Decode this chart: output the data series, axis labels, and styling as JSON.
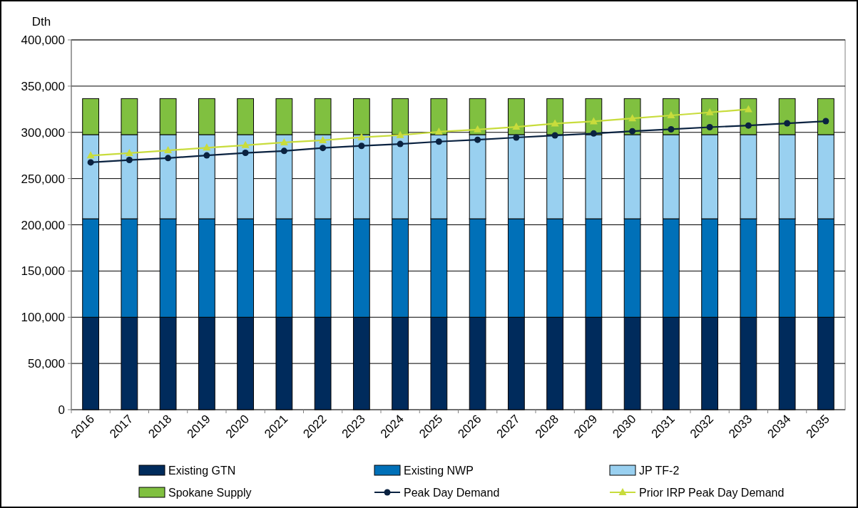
{
  "chart_data": {
    "type": "bar",
    "stacked": true,
    "ylabel": "Dth",
    "categories": [
      "2016",
      "2017",
      "2018",
      "2019",
      "2020",
      "2021",
      "2022",
      "2023",
      "2024",
      "2025",
      "2026",
      "2027",
      "2028",
      "2029",
      "2030",
      "2031",
      "2032",
      "2033",
      "2034",
      "2035"
    ],
    "series": [
      {
        "name": "Existing GTN",
        "color": "#002b5c",
        "values": [
          100000,
          100000,
          100000,
          100000,
          100000,
          100000,
          100000,
          100000,
          100000,
          100000,
          100000,
          100000,
          100000,
          100000,
          100000,
          100000,
          100000,
          100000,
          100000,
          100000
        ]
      },
      {
        "name": "Existing NWP",
        "color": "#0070b8",
        "values": [
          106500,
          106500,
          106500,
          106500,
          106500,
          106500,
          106500,
          106500,
          106500,
          106500,
          106500,
          106500,
          106500,
          106500,
          106500,
          106500,
          106500,
          106500,
          106500,
          106500
        ]
      },
      {
        "name": "JP TF-2",
        "color": "#99d0f0",
        "values": [
          91000,
          91000,
          91000,
          91000,
          91000,
          91000,
          91000,
          91000,
          91000,
          91000,
          91000,
          91000,
          91000,
          91000,
          91000,
          91000,
          91000,
          91000,
          91000,
          91000
        ]
      },
      {
        "name": "Spokane Supply",
        "color": "#80c040",
        "values": [
          39000,
          39000,
          39000,
          39000,
          39000,
          39000,
          39000,
          39000,
          39000,
          39000,
          39000,
          39000,
          39000,
          39000,
          39000,
          39000,
          39000,
          39000,
          39000,
          39000
        ]
      },
      {
        "name": "Peak Day Demand",
        "type": "line",
        "marker": "circle",
        "color": "#0a2240",
        "values": [
          267500,
          270100,
          272200,
          275100,
          277800,
          279900,
          283100,
          285400,
          287400,
          290000,
          292000,
          294400,
          296700,
          298800,
          301200,
          303300,
          305600,
          307400,
          309800,
          312100
        ]
      },
      {
        "name": "Prior IRP Peak Day Demand",
        "type": "line",
        "marker": "triangle",
        "color": "#c8dc3c",
        "values": [
          274900,
          277500,
          280500,
          283400,
          286100,
          289100,
          291400,
          294700,
          297000,
          300600,
          303000,
          305900,
          309500,
          311800,
          315100,
          318300,
          321600,
          324900,
          null,
          null
        ]
      }
    ],
    "ylim": [
      0,
      400000
    ],
    "yticks": [
      {
        "value": 0,
        "label": "0"
      },
      {
        "value": 50000,
        "label": "50,000"
      },
      {
        "value": 100000,
        "label": "100,000"
      },
      {
        "value": 150000,
        "label": "150,000"
      },
      {
        "value": 200000,
        "label": "200,000"
      },
      {
        "value": 250000,
        "label": "250,000"
      },
      {
        "value": 300000,
        "label": "300,000"
      },
      {
        "value": 350000,
        "label": "350,000"
      },
      {
        "value": 400000,
        "label": "400,000"
      }
    ],
    "grid": "y",
    "legend": "bottom"
  }
}
